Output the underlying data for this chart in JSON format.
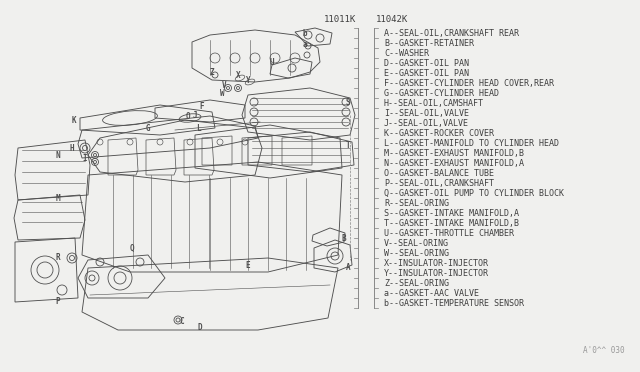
{
  "bg_color": "#f0f0ee",
  "part_number_left": "11011K",
  "part_number_right": "11042K",
  "watermark": "A'0^^ 030",
  "legend_items": [
    "A--SEAL-OIL,CRANKSHAFT REAR",
    "B--GASKET-RETAINER",
    "C--WASHER",
    "D--GASKET-OIL PAN",
    "E--GASKET-OIL PAN",
    "F--GASKET-CYLINDER HEAD COVER,REAR",
    "G--GASKET-CYLINDER HEAD",
    "H--SEAL-OIL,CAMSHAFT",
    "I--SEAL-OIL,VALVE",
    "J--SEAL-OIL,VALVE",
    "K--GASKET-ROCKER COVER",
    "L--GASKET-MANIFOLD TO CYLINDER HEAD",
    "M--GASKET-EXHAUST MANIFOLD,B",
    "N--GASKET-EXHAUST MANIFOLD,A",
    "O--GASKET-BALANCE TUBE",
    "P--SEAL-OIL,CRANKSHAFT",
    "Q--GASKET-OIL PUMP TO CYLINDER BLOCK",
    "R--SEAL-ORING",
    "S--GASKET-INTAKE MANIFOLD,A",
    "T--GASKET-INTAKE MANIFOLD,B",
    "U--GASKET-THROTTLE CHAMBER",
    "V--SEAL-ORING",
    "W--SEAL-ORING",
    "X--INSULATOR-INJECTOR",
    "Y--INSULATOR-INJECTOR",
    "Z--SEAL-ORING",
    "a--GASKET-AAC VALVE",
    "b--GASKET-TEMPERATURE SENSOR"
  ],
  "font_size_legend": 6.0,
  "font_size_partnumber": 6.5,
  "dc": "#505050",
  "text_color": "#404040"
}
